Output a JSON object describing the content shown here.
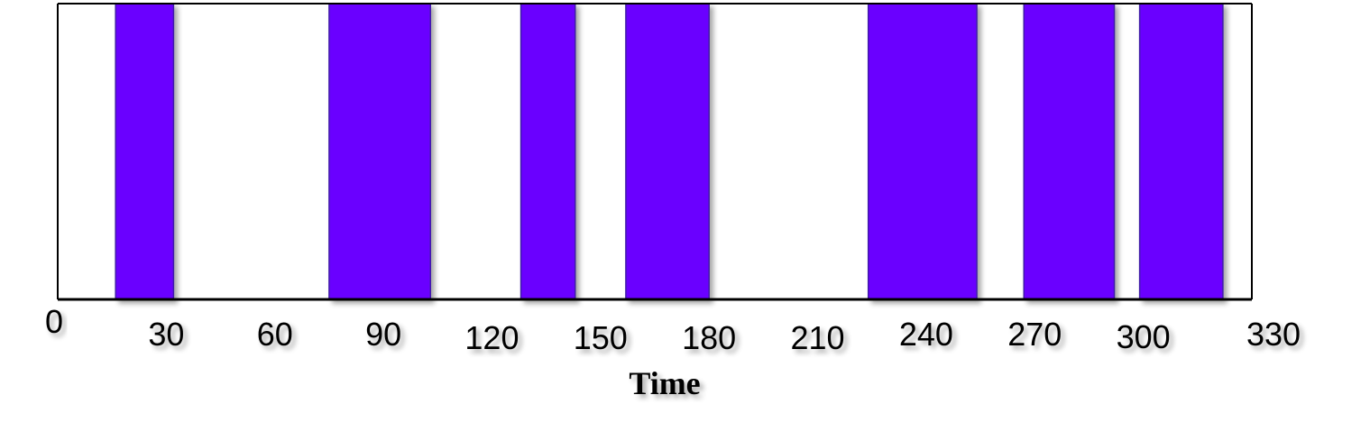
{
  "chart_data": {
    "type": "bar",
    "description_kind": "event-interval timeline",
    "xlabel": "Time",
    "ylabel": "",
    "xlim": [
      0,
      330
    ],
    "xticks": [
      0,
      30,
      60,
      90,
      120,
      150,
      180,
      210,
      240,
      270,
      300,
      330
    ],
    "xtick_labels": [
      "0",
      "30",
      "60",
      "90",
      "120",
      "150",
      "180",
      "210",
      "240",
      "270",
      "300",
      "330"
    ],
    "grid": false,
    "legend": false,
    "intervals": [
      {
        "start": 16,
        "end": 32
      },
      {
        "start": 75,
        "end": 103
      },
      {
        "start": 128,
        "end": 143
      },
      {
        "start": 157,
        "end": 180
      },
      {
        "start": 224,
        "end": 254
      },
      {
        "start": 267,
        "end": 292
      },
      {
        "start": 299,
        "end": 322
      }
    ],
    "colors": {
      "bar_fill": "#6a00ff",
      "bar_stroke": "#3f1aa8",
      "axis": "#000000"
    }
  }
}
